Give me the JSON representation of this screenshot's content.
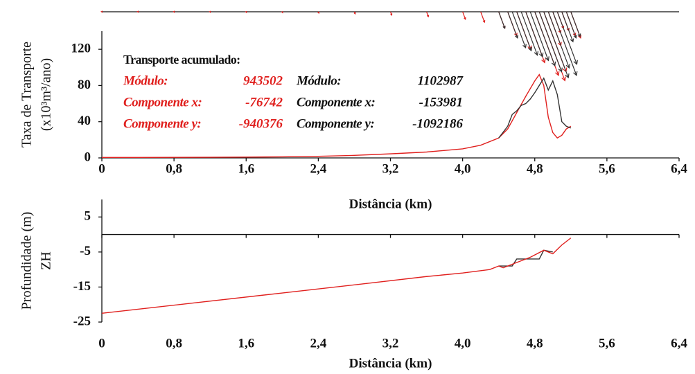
{
  "chart_data": [
    {
      "type": "line",
      "ylabel": [
        "Taxa de Transporte",
        "(x10³m³/ano)"
      ],
      "xlabel": "Distância (km)",
      "xlim": [
        0,
        6.4
      ],
      "ylim": [
        0,
        140
      ],
      "xticks": [
        0,
        {
          "value": 0.8,
          "label": "0,8"
        },
        {
          "value": 1.6,
          "label": "1,6"
        },
        {
          "value": 2.4,
          "label": "2,4"
        },
        {
          "value": 3.2,
          "label": "3,2"
        },
        {
          "value": 4.0,
          "label": "4,0"
        },
        {
          "value": 4.8,
          "label": "4,8"
        },
        {
          "value": 5.6,
          "label": "5,6"
        },
        {
          "value": 6.4,
          "label": "6,4"
        }
      ],
      "yticks": [
        0,
        40,
        80,
        120
      ],
      "vectors": true,
      "series": [
        {
          "color": "#e0201e",
          "x": [
            0,
            0.4,
            0.8,
            1.2,
            1.6,
            2.0,
            2.4,
            2.8,
            3.2,
            3.6,
            4.0,
            4.2,
            4.4,
            4.5,
            4.6,
            4.7,
            4.8,
            4.85,
            4.9,
            4.95,
            5.0,
            5.05,
            5.1,
            5.15,
            5.2
          ],
          "values": [
            0.5,
            0.5,
            0.6,
            0.7,
            0.9,
            1.2,
            1.8,
            2.8,
            4.5,
            6.5,
            10,
            14,
            22,
            32,
            50,
            68,
            85,
            92,
            80,
            45,
            28,
            22,
            25,
            32,
            35
          ]
        },
        {
          "color": "#333333",
          "x": [
            4.4,
            4.5,
            4.55,
            4.6,
            4.65,
            4.7,
            4.75,
            4.8,
            4.85,
            4.9,
            4.95,
            5.0,
            5.05,
            5.1,
            5.15,
            5.2
          ],
          "values": [
            22,
            35,
            48,
            52,
            58,
            60,
            65,
            72,
            80,
            88,
            75,
            85,
            70,
            40,
            35,
            33
          ]
        }
      ],
      "summary": {
        "title": "Transporte acumulado:",
        "groups": [
          {
            "color": "#e0201e",
            "items": [
              {
                "label": "Módulo:",
                "value": 943502
              },
              {
                "label": "Componente x:",
                "value": -76742
              },
              {
                "label": "Componente y:",
                "value": -940376
              }
            ]
          },
          {
            "color": "#111111",
            "items": [
              {
                "label": "Módulo:",
                "value": 1102987
              },
              {
                "label": "Componente x:",
                "value": -153981
              },
              {
                "label": "Componente y:",
                "value": -1092186
              }
            ]
          }
        ]
      }
    },
    {
      "type": "line",
      "ylabel": [
        "Profundidade (m)",
        "ZH"
      ],
      "xlabel": "Distância (km)",
      "xlim": [
        0,
        6.4
      ],
      "ylim": [
        -25,
        10
      ],
      "xticks": [
        0,
        {
          "value": 0.8,
          "label": "0,8"
        },
        {
          "value": 1.6,
          "label": "1,6"
        },
        {
          "value": 2.4,
          "label": "2,4"
        },
        {
          "value": 3.2,
          "label": "3,2"
        },
        {
          "value": 4.0,
          "label": "4,0"
        },
        {
          "value": 4.8,
          "label": "4,8"
        },
        {
          "value": 5.6,
          "label": "5,6"
        },
        {
          "value": 6.4,
          "label": "6,4"
        }
      ],
      "yticks": [
        5,
        -5,
        -15,
        -25
      ],
      "series": [
        {
          "color": "#333333",
          "x": [
            4.4,
            4.55,
            4.6,
            4.85,
            4.9,
            5.0
          ],
          "values": [
            -9,
            -9,
            -7,
            -7,
            -4.5,
            -5
          ]
        },
        {
          "color": "#e0201e",
          "x": [
            0,
            1.0,
            2.0,
            3.0,
            3.6,
            4.0,
            4.3,
            4.4,
            4.45,
            4.6,
            4.75,
            4.9,
            5.0,
            5.1,
            5.2
          ],
          "values": [
            -22.5,
            -19.6,
            -16.7,
            -13.8,
            -12,
            -11,
            -10,
            -9,
            -9.5,
            -8,
            -6.5,
            -4.5,
            -5.5,
            -3,
            -1
          ]
        }
      ]
    }
  ]
}
